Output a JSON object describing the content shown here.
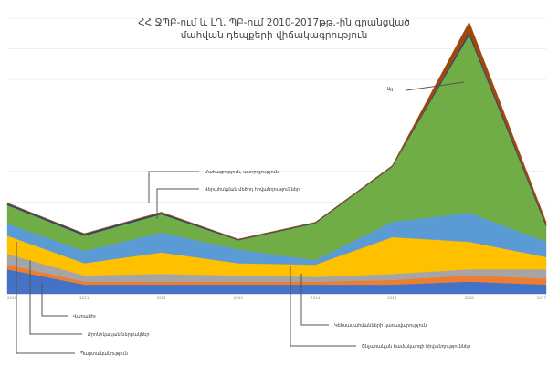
{
  "chart_data": {
    "type": "area",
    "stacked": true,
    "title": "ՀՀ ՋՊԲ-ում և ԼՂ, ՊԲ-ում 2010-2017թթ.-ին գրանցված\nմահվան դեպքերի վիճակագրություն",
    "xlabel": "",
    "ylabel": "",
    "categories": [
      "2010",
      "2011",
      "2012",
      "2013",
      "2014",
      "2015",
      "2016",
      "2017"
    ],
    "ylim": [
      0,
      9
    ],
    "grid": true,
    "legend": "annotations",
    "series": [
      {
        "name": "Պարտականություն",
        "color": "#4472C4",
        "values": [
          0.8,
          0.3,
          0.3,
          0.3,
          0.3,
          0.3,
          0.4,
          0.3
        ]
      },
      {
        "name": "Վարակիչ",
        "color": "#ED7D31",
        "values": [
          0.15,
          0.1,
          0.1,
          0.1,
          0.1,
          0.15,
          0.2,
          0.2
        ]
      },
      {
        "name": "Քրոնիկական ներբակներ",
        "color": "#A5A5A5",
        "values": [
          0.35,
          0.2,
          0.25,
          0.2,
          0.15,
          0.2,
          0.2,
          0.3
        ]
      },
      {
        "name": "Շնչառական համակարգի հիվանդություններ",
        "color": "#FFC000",
        "values": [
          0.6,
          0.4,
          0.7,
          0.4,
          0.4,
          1.2,
          0.9,
          0.4
        ]
      },
      {
        "name": "Կենսասահմանների կառավարություն",
        "color": "#5B9BD5",
        "values": [
          0.4,
          0.4,
          0.65,
          0.45,
          0.15,
          0.5,
          0.95,
          0.5
        ]
      },
      {
        "name": "Մահացություն, անորոշություն",
        "color": "#70AD47",
        "values": [
          0.6,
          0.5,
          0.6,
          0.3,
          1.2,
          1.8,
          5.8,
          0.5
        ]
      },
      {
        "name": "Վերահսկման մեծոդ հիվանդություններ",
        "color": "#264478",
        "values": [
          0.05,
          0.05,
          0.05,
          0.02,
          0.02,
          0.02,
          0.08,
          0.05
        ]
      },
      {
        "name": "Այլ",
        "color": "#9E480E",
        "values": [
          0.02,
          0.02,
          0.02,
          0.02,
          0.02,
          0.02,
          0.35,
          0.1
        ]
      }
    ],
    "annotations": [
      "Այլ",
      "Մահացություն, անորոշություն",
      "Վերահսկման մեծոդ հիվանդություններ",
      "Կենսասահմանների կառավարություն",
      "Շնչառական համակարգի հիվանդություններ",
      "Քրոնիկական ներբակներ",
      "Վարակիչ",
      "Պարտականություն"
    ]
  }
}
